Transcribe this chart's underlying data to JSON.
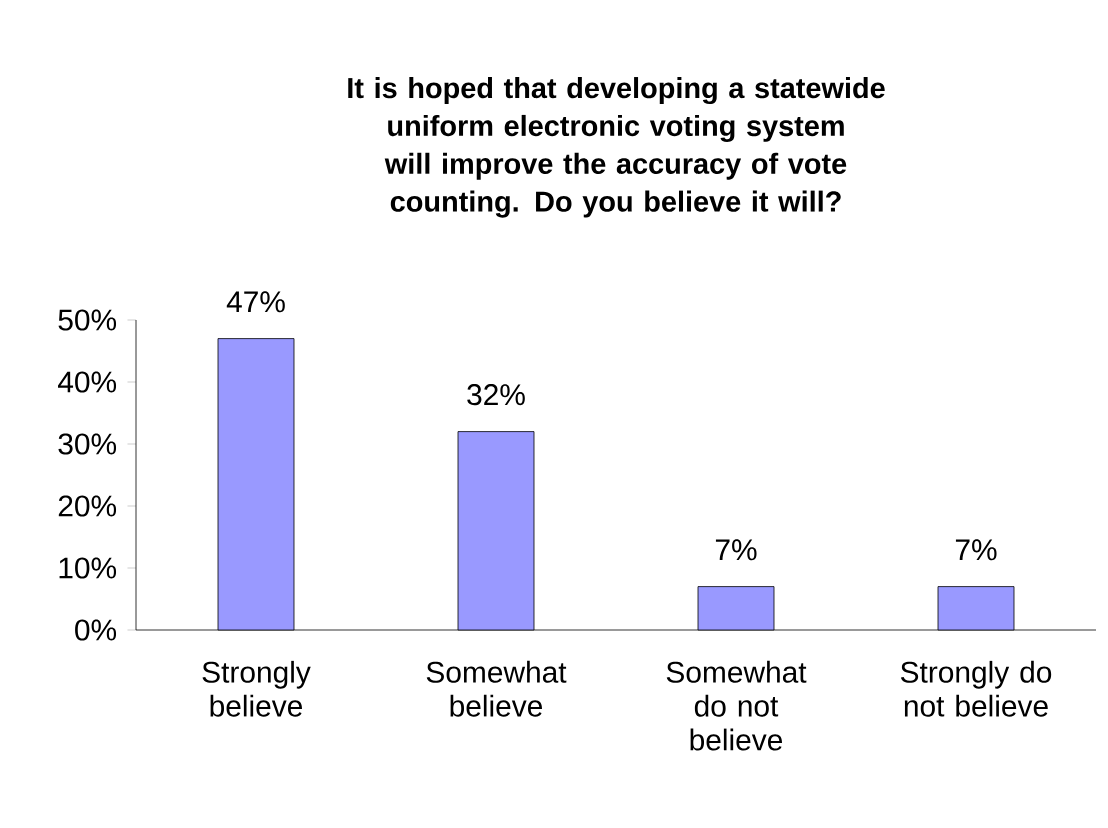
{
  "chart_data": {
    "type": "bar",
    "title": "It is hoped that developing a statewide uniform electronic voting system will improve the accuracy of vote counting. Do you believe it will?",
    "categories": [
      "Strongly believe",
      "Somewhat believe",
      "Somewhat do not believe",
      "Strongly do not believe"
    ],
    "values": [
      47,
      32,
      7,
      7
    ],
    "color": "#9999ff",
    "value_labels": [
      "47%",
      "32%",
      "7%",
      "7%"
    ],
    "ylim": [
      0,
      50
    ],
    "yticks": [
      {
        "value": 0,
        "label": "0%"
      },
      {
        "value": 10,
        "label": "10%"
      },
      {
        "value": 20,
        "label": "20%"
      },
      {
        "value": 30,
        "label": "30%"
      },
      {
        "value": 40,
        "label": "40%"
      },
      {
        "value": 50,
        "label": "50%"
      }
    ],
    "grid": false
  }
}
